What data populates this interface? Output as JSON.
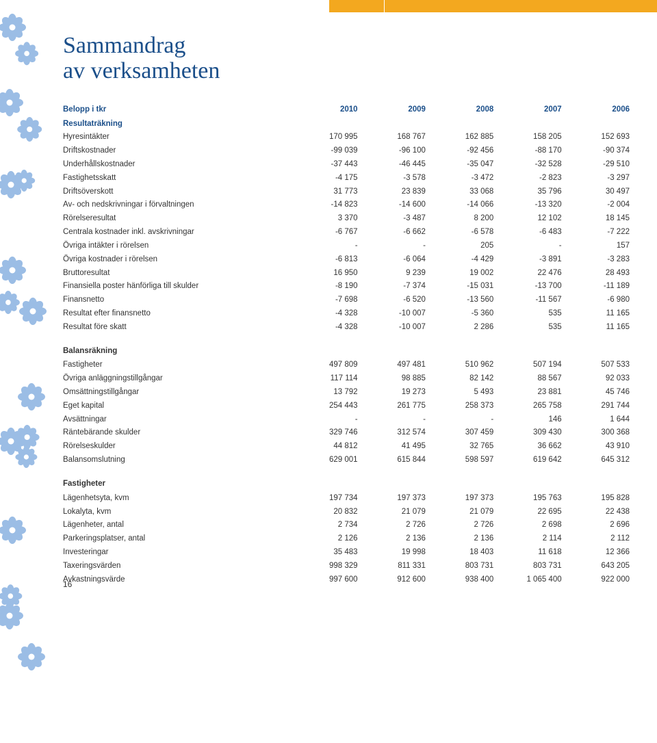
{
  "title_line1": "Sammandrag",
  "title_line2": "av verksamheten",
  "header_label": "Belopp i tkr",
  "years": [
    "2010",
    "2009",
    "2008",
    "2007",
    "2006"
  ],
  "colors": {
    "heading": "#1b4f8a",
    "accent_bar": "#f3a81f",
    "flower_blue": "#5b8fc9",
    "flower_blue_dark": "#2c5f9b"
  },
  "sections": [
    {
      "title": "Resultaträkning",
      "rows": [
        {
          "label": "Hyresintäkter",
          "v": [
            "170 995",
            "168 767",
            "162 885",
            "158 205",
            "152 693"
          ]
        },
        {
          "label": "Driftskostnader",
          "v": [
            "-99 039",
            "-96 100",
            "-92 456",
            "-88 170",
            "-90 374"
          ]
        },
        {
          "label": "Underhållskostnader",
          "v": [
            "-37 443",
            "-46 445",
            "-35 047",
            "-32 528",
            "-29 510"
          ]
        },
        {
          "label": "Fastighetsskatt",
          "v": [
            "-4 175",
            "-3 578",
            "-3 472",
            "-2 823",
            "-3 297"
          ]
        },
        {
          "label": "Driftsöverskott",
          "v": [
            "31 773",
            "23 839",
            "33 068",
            "35 796",
            "30 497"
          ]
        },
        {
          "label": "Av- och nedskrivningar i förvaltningen",
          "v": [
            "-14 823",
            "-14 600",
            "-14 066",
            "-13 320",
            "-2 004"
          ]
        },
        {
          "label": "Rörelseresultat",
          "v": [
            "3 370",
            "-3 487",
            "8 200",
            "12 102",
            "18 145"
          ]
        },
        {
          "label": "Centrala kostnader inkl. avskrivningar",
          "v": [
            "-6 767",
            "-6 662",
            "-6 578",
            "-6 483",
            "-7 222"
          ]
        },
        {
          "label": "Övriga intäkter i rörelsen",
          "v": [
            "-",
            "-",
            "205",
            "-",
            "157"
          ]
        },
        {
          "label": "Övriga kostnader i rörelsen",
          "v": [
            "-6 813",
            "-6 064",
            "-4 429",
            "-3 891",
            "-3 283"
          ]
        },
        {
          "label": "Bruttoresultat",
          "v": [
            "16 950",
            "9 239",
            "19 002",
            "22 476",
            "28 493"
          ]
        },
        {
          "label": "Finansiella poster hänförliga till skulder",
          "v": [
            "-8 190",
            "-7 374",
            "-15 031",
            "-13 700",
            "-11 189"
          ]
        },
        {
          "label": "Finansnetto",
          "v": [
            "-7 698",
            "-6 520",
            "-13 560",
            "-11 567",
            "-6 980"
          ]
        },
        {
          "label": "Resultat efter finansnetto",
          "v": [
            "-4 328",
            "-10 007",
            "-5 360",
            "535",
            "11 165"
          ]
        },
        {
          "label": "Resultat före skatt",
          "v": [
            "-4 328",
            "-10 007",
            "2 286",
            "535",
            "11 165"
          ]
        }
      ]
    },
    {
      "title": "Balansräkning",
      "rows": [
        {
          "label": "Fastigheter",
          "v": [
            "497 809",
            "497 481",
            "510 962",
            "507 194",
            "507 533"
          ]
        },
        {
          "label": "Övriga anläggningstillgångar",
          "v": [
            "117 114",
            "98 885",
            "82 142",
            "88 567",
            "92 033"
          ]
        },
        {
          "label": "Omsättningstillgångar",
          "v": [
            "13 792",
            "19 273",
            "5 493",
            "23 881",
            "45 746"
          ]
        },
        {
          "label": "Eget kapital",
          "v": [
            "254 443",
            "261 775",
            "258 373",
            "265 758",
            "291 744"
          ]
        },
        {
          "label": "Avsättningar",
          "v": [
            "-",
            "-",
            "-",
            "146",
            "1 644"
          ]
        },
        {
          "label": "Räntebärande skulder",
          "v": [
            "329 746",
            "312 574",
            "307 459",
            "309 430",
            "300 368"
          ]
        },
        {
          "label": "Rörelseskulder",
          "v": [
            "44 812",
            "41 495",
            "32 765",
            "36 662",
            "43 910"
          ]
        },
        {
          "label": "Balansomslutning",
          "v": [
            "629 001",
            "615 844",
            "598 597",
            "619 642",
            "645 312"
          ]
        }
      ]
    },
    {
      "title": "Fastigheter",
      "rows": [
        {
          "label": "Lägenhetsyta, kvm",
          "v": [
            "197 734",
            "197 373",
            "197 373",
            "195 763",
            "195 828"
          ]
        },
        {
          "label": "Lokalyta, kvm",
          "v": [
            "20 832",
            "21 079",
            "21 079",
            "22 695",
            "22 438"
          ]
        },
        {
          "label": "Lägenheter, antal",
          "v": [
            "2 734",
            "2 726",
            "2 726",
            "2 698",
            "2 696"
          ]
        },
        {
          "label": "Parkeringsplatser, antal",
          "v": [
            "2 126",
            "2 136",
            "2 136",
            "2 114",
            "2 112"
          ]
        },
        {
          "label": "Investeringar",
          "v": [
            "35 483",
            "19 998",
            "18 403",
            "11 618",
            "12 366"
          ]
        },
        {
          "label": "Taxeringsvärden",
          "v": [
            "998 329",
            "811 331",
            "803 731",
            "803 731",
            "643 205"
          ]
        },
        {
          "label": "Avkastningsvärde",
          "v": [
            "997 600",
            "912 600",
            "938 400",
            "1 065 400",
            "922 000"
          ]
        }
      ]
    }
  ],
  "page_number": "16"
}
